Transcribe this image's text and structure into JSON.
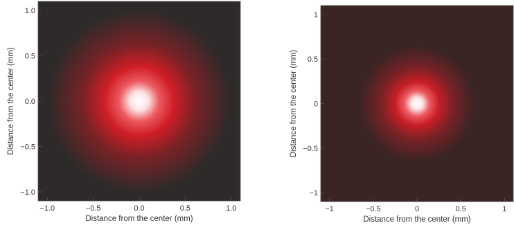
{
  "chart_data": [
    {
      "type": "heatmap",
      "title": "",
      "xlabel": "Distance from the center (mm)",
      "ylabel": "Distance from the center (mm)",
      "xlim": [
        -1.1,
        1.1
      ],
      "ylim": [
        -1.1,
        1.1
      ],
      "xticks": [
        -1.0,
        -0.5,
        0.0,
        0.5,
        1.0
      ],
      "xtick_labels": [
        "−1.0",
        "−0.5",
        "0.0",
        "0.5",
        "1.0"
      ],
      "yticks": [
        -1.0,
        -0.5,
        0.0,
        0.5,
        1.0
      ],
      "ytick_labels": [
        "−1.0",
        "−0.5",
        "0.0",
        "0.5",
        "1.0"
      ],
      "spot_center": [
        0.0,
        0.0
      ],
      "spot_sigma_mm": 0.3,
      "grid": false,
      "colors": {
        "background": "#2e2a2a",
        "mid": "#d01e26",
        "peak": "#ffffff"
      }
    },
    {
      "type": "heatmap",
      "title": "",
      "xlabel": "Distance from the center (mm)",
      "ylabel": "Distance from the center (mm)",
      "xlim": [
        -1.1,
        1.1
      ],
      "ylim": [
        -1.1,
        1.1
      ],
      "xticks": [
        -1,
        -0.5,
        0,
        0.5,
        1
      ],
      "xtick_labels": [
        "−1",
        "−0.5",
        "0",
        "0.5",
        "1"
      ],
      "yticks": [
        -1,
        -0.5,
        0,
        0.5,
        1
      ],
      "ytick_labels": [
        "−1",
        "−0.5",
        "0",
        "0.5",
        "1"
      ],
      "spot_center": [
        0.0,
        0.0
      ],
      "spot_sigma_mm": 0.2,
      "grid": false,
      "colors": {
        "background": "#3a2424",
        "mid": "#c81e26",
        "peak": "#ffffff"
      }
    }
  ]
}
